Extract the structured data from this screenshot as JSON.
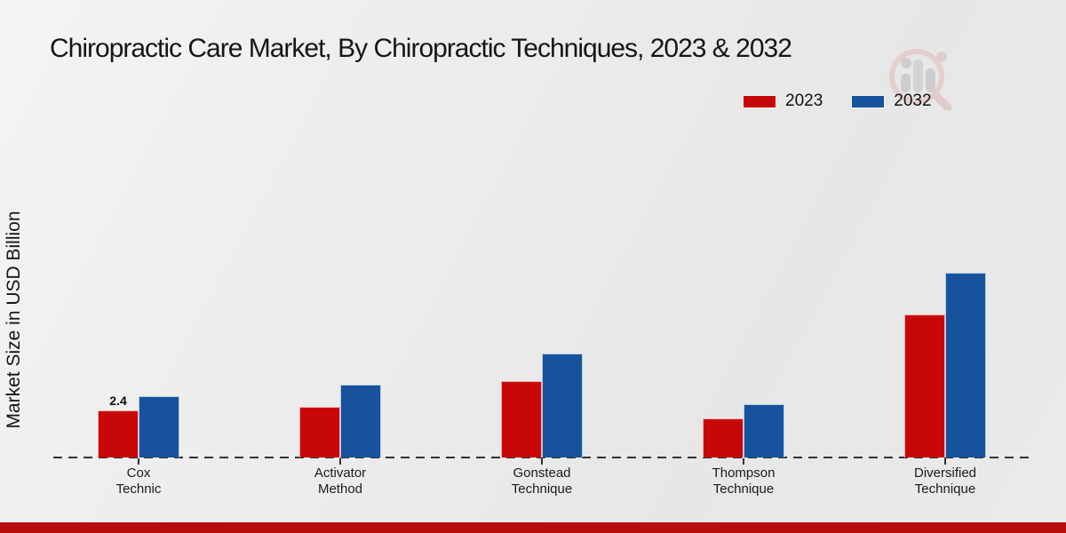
{
  "title": "Chiropractic Care Market, By Chiropractic Techniques, 2023 & 2032",
  "y_axis_label": "Market Size in USD Billion",
  "colors": {
    "series_2023": "#c80808",
    "series_2032": "#16539c",
    "footer_bar": "#b70d0d",
    "axis_dash": "#333333",
    "background": "#ebebeb"
  },
  "watermark_icon": "magnifier-bar-chart-logo",
  "chart_data": {
    "type": "bar",
    "title": "Chiropractic Care Market, By Chiropractic Techniques, 2023 & 2032",
    "ylabel": "Market Size in USD Billion",
    "xlabel": "",
    "grid": false,
    "legend_position": "top-right",
    "baseline_style": "dashed",
    "categories": [
      "Cox Technic",
      "Activator Method",
      "Gonstead Technique",
      "Thompson Technique",
      "Diversified Technique"
    ],
    "categories_lines": [
      [
        "Cox",
        "Technic"
      ],
      [
        "Activator",
        "Method"
      ],
      [
        "Gonstead",
        "Technique"
      ],
      [
        "Thompson",
        "Technique"
      ],
      [
        "Diversified",
        "Technique"
      ]
    ],
    "series": [
      {
        "name": "2023",
        "color": "#c80808",
        "values": [
          2.4,
          2.6,
          3.9,
          2.0,
          7.3
        ]
      },
      {
        "name": "2032",
        "color": "#16539c",
        "values": [
          3.1,
          3.7,
          5.3,
          2.7,
          9.4
        ]
      }
    ],
    "data_labels": [
      {
        "series": 0,
        "category": 0,
        "text": "2.4"
      }
    ],
    "ylim": [
      0,
      10
    ]
  }
}
